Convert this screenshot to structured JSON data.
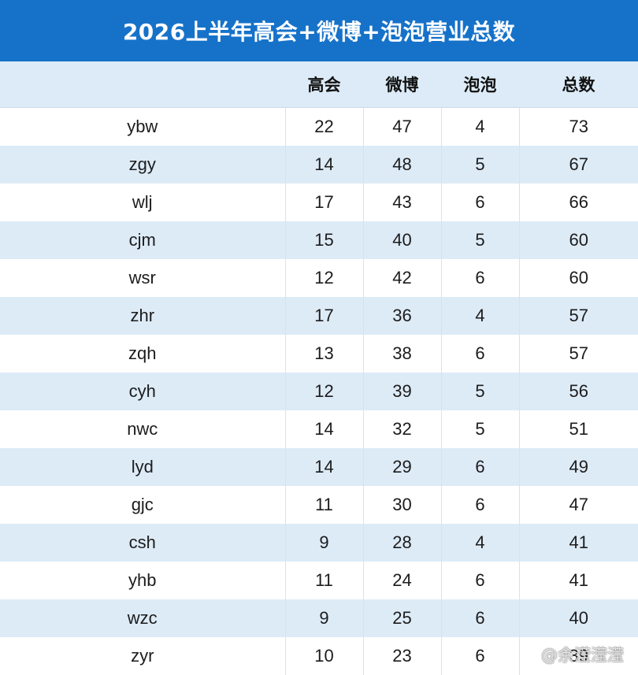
{
  "title": "2026上半年高会+微博+泡泡营业总数",
  "table": {
    "headers": [
      "",
      "高会",
      "微博",
      "泡泡",
      "总数"
    ],
    "rows": [
      [
        "ybw",
        "22",
        "47",
        "4",
        "73"
      ],
      [
        "zgy",
        "14",
        "48",
        "5",
        "67"
      ],
      [
        "wlj",
        "17",
        "43",
        "6",
        "66"
      ],
      [
        "cjm",
        "15",
        "40",
        "5",
        "60"
      ],
      [
        "wsr",
        "12",
        "42",
        "6",
        "60"
      ],
      [
        "zhr",
        "17",
        "36",
        "4",
        "57"
      ],
      [
        "zqh",
        "13",
        "38",
        "6",
        "57"
      ],
      [
        "cyh",
        "12",
        "39",
        "5",
        "56"
      ],
      [
        "nwc",
        "14",
        "32",
        "5",
        "51"
      ],
      [
        "lyd",
        "14",
        "29",
        "6",
        "49"
      ],
      [
        "gjc",
        "11",
        "30",
        "6",
        "47"
      ],
      [
        "csh",
        "9",
        "28",
        "4",
        "41"
      ],
      [
        "yhb",
        "11",
        "24",
        "6",
        "41"
      ],
      [
        "wzc",
        "9",
        "25",
        "6",
        "40"
      ],
      [
        "zyr",
        "10",
        "23",
        "6",
        "39"
      ]
    ]
  },
  "watermark": "@余滢滢滢",
  "colors": {
    "title_bar": "#1672c9",
    "header_row": "#dcebf7",
    "stripe": "#ddebf7"
  }
}
